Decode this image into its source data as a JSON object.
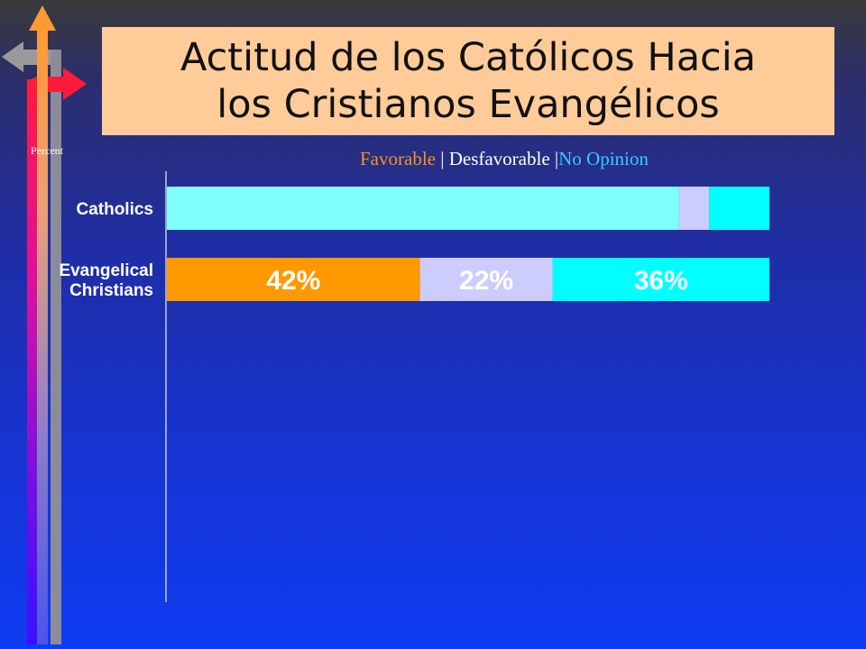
{
  "title": {
    "line1": "Actitud de los Católicos Hacia",
    "line2": "los Cristianos Evangélicos"
  },
  "y_axis_note": "Percent",
  "legend": {
    "items": [
      {
        "label": "Favorable",
        "color": "#f7941d"
      },
      {
        "label": "Desfavorable",
        "color": "#ffffff"
      },
      {
        "label": "No Opinion",
        "color": "#33ccff"
      }
    ],
    "separator": "|"
  },
  "chart_data": {
    "type": "bar",
    "orientation": "horizontal",
    "stacked": true,
    "xlim": [
      0,
      100
    ],
    "categories": [
      "Catholics",
      "Evangelical Christians"
    ],
    "category_lines": [
      [
        "Catholics"
      ],
      [
        "Evangelical",
        "Christians"
      ]
    ],
    "series": [
      {
        "name": "Favorable",
        "values": [
          85,
          42
        ],
        "colors": [
          "#80ffff",
          "#ff9900"
        ]
      },
      {
        "name": "Desfavorable",
        "values": [
          5,
          22
        ],
        "colors": [
          "#ccccff",
          "#ccccff"
        ]
      },
      {
        "name": "No Opinion",
        "values": [
          10,
          36
        ],
        "colors": [
          "#00ffff",
          "#00ffff"
        ]
      }
    ],
    "data_labels": [
      [
        "",
        "",
        ""
      ],
      [
        "42%",
        "22%",
        "36%"
      ]
    ]
  }
}
